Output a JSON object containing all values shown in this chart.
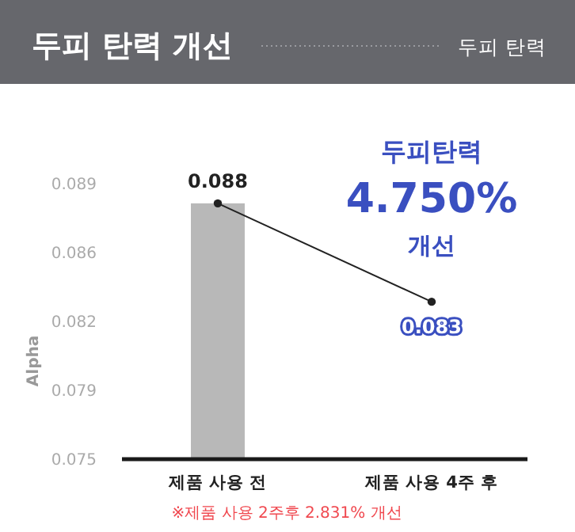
{
  "chart_data": {
    "type": "bar",
    "title": "두피 탄력 개선",
    "subtitle": "두피 탄력",
    "ylabel": "Alpha",
    "categories": [
      "제품 사용 전",
      "제품 사용 4주 후"
    ],
    "series": [
      {
        "color": "#b8b8b8",
        "values": [
          0.088,
          null
        ],
        "value_labels": [
          "0.088",
          null
        ]
      },
      {
        "type": "line",
        "color": "#222222",
        "values": [
          0.088,
          0.083
        ]
      }
    ],
    "ylim": [
      0.075,
      0.089
    ],
    "yticks": [
      0.075,
      {
        "value": 0.0785,
        "label": "0.079"
      },
      0.082,
      {
        "value": 0.0855,
        "label": "0.086"
      },
      {
        "value": 0.089,
        "label": "0.089"
      }
    ],
    "annotations": [
      "두피탄력\n4.750%\n개선",
      {
        "text": "0.083",
        "x": "제품 사용 4주 후",
        "y": 0.083
      },
      "※제품 사용 2주후 2.831% 개선"
    ],
    "marker": "circle"
  }
}
